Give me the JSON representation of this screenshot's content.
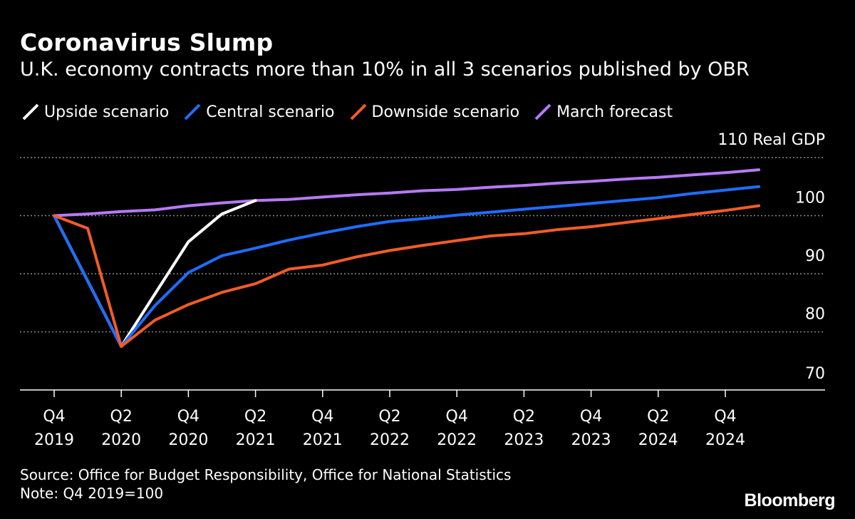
{
  "header": {
    "title": "Coronavirus Slump",
    "subtitle": "U.K. economy contracts more than 10% in all 3 scenarios published by OBR"
  },
  "footer": {
    "source": "Source: Office for Budget Responsibility, Office for National Statistics",
    "note": "Note: Q4 2019=100",
    "brand": "Bloomberg"
  },
  "chart_data": {
    "type": "line",
    "ylabel": "Real GDP",
    "ylim": [
      70,
      110
    ],
    "yticks": [
      70,
      80,
      90,
      100,
      110
    ],
    "grid": true,
    "legend_position": "top",
    "x": [
      "Q4 2019",
      "Q1 2020",
      "Q2 2020",
      "Q3 2020",
      "Q4 2020",
      "Q1 2021",
      "Q2 2021",
      "Q3 2021",
      "Q4 2021",
      "Q1 2022",
      "Q2 2022",
      "Q3 2022",
      "Q4 2022",
      "Q1 2023",
      "Q2 2023",
      "Q3 2023",
      "Q4 2023",
      "Q1 2024",
      "Q2 2024",
      "Q3 2024",
      "Q4 2024",
      "Q1 2025"
    ],
    "x_tick_labels": [
      {
        "index": 0,
        "quarter": "Q4",
        "year": "2019"
      },
      {
        "index": 2,
        "quarter": "Q2",
        "year": "2020"
      },
      {
        "index": 4,
        "quarter": "Q4",
        "year": "2020"
      },
      {
        "index": 6,
        "quarter": "Q2",
        "year": "2021"
      },
      {
        "index": 8,
        "quarter": "Q4",
        "year": "2021"
      },
      {
        "index": 10,
        "quarter": "Q2",
        "year": "2022"
      },
      {
        "index": 12,
        "quarter": "Q4",
        "year": "2022"
      },
      {
        "index": 14,
        "quarter": "Q2",
        "year": "2023"
      },
      {
        "index": 16,
        "quarter": "Q4",
        "year": "2023"
      },
      {
        "index": 18,
        "quarter": "Q2",
        "year": "2024"
      },
      {
        "index": 20,
        "quarter": "Q4",
        "year": "2024"
      }
    ],
    "series": [
      {
        "name": "Upside scenario",
        "color": "#ffffff",
        "values": [
          100,
          null,
          77.5,
          86.5,
          95.5,
          100.3,
          102.6,
          null,
          null,
          null,
          null,
          null,
          null,
          null,
          null,
          null,
          null,
          null,
          null,
          null,
          null,
          null
        ]
      },
      {
        "name": "Central scenario",
        "color": "#1f6dff",
        "values": [
          100,
          null,
          77.5,
          84.5,
          90.2,
          93.1,
          94.4,
          95.8,
          97.0,
          98.1,
          99.0,
          99.5,
          100.1,
          100.6,
          101.1,
          101.6,
          102.1,
          102.6,
          103.1,
          103.8,
          104.4,
          105.0
        ]
      },
      {
        "name": "Downside scenario",
        "color": "#f25c28",
        "values": [
          100,
          97.8,
          77.5,
          82.0,
          84.7,
          86.8,
          88.3,
          90.8,
          91.5,
          92.9,
          94.0,
          94.9,
          95.7,
          96.5,
          96.9,
          97.6,
          98.1,
          98.8,
          99.5,
          100.2,
          100.9,
          101.7
        ]
      },
      {
        "name": "March forecast",
        "color": "#b57af5",
        "values": [
          100,
          100.3,
          100.7,
          101.0,
          101.7,
          102.2,
          102.6,
          102.8,
          103.2,
          103.6,
          103.9,
          104.3,
          104.5,
          104.9,
          105.2,
          105.6,
          105.9,
          106.3,
          106.6,
          107.0,
          107.4,
          107.9
        ]
      }
    ]
  }
}
